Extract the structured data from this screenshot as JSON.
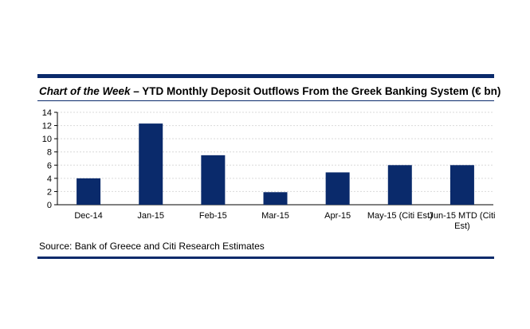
{
  "header": {
    "title_em": "Chart of the Week",
    "title_rest": " – YTD Monthly Deposit Outflows From the Greek Banking System (€ bn)"
  },
  "source": "Source: Bank of Greece and Citi Research Estimates",
  "colors": {
    "bar": "#0a2a6b",
    "rule": "#0a2a6b",
    "grid": "#d9d9d9"
  },
  "chart_data": {
    "type": "bar",
    "title": "Chart of the Week – YTD Monthly Deposit Outflows From the Greek Banking System (€ bn)",
    "categories": [
      "Dec-14",
      "Jan-15",
      "Feb-15",
      "Mar-15",
      "Apr-15",
      "May-15 (Citi Est)",
      "Jun-15 MTD (Citi Est)"
    ],
    "category_lines": [
      [
        "Dec-14"
      ],
      [
        "Jan-15"
      ],
      [
        "Feb-15"
      ],
      [
        "Mar-15"
      ],
      [
        "Apr-15"
      ],
      [
        "May-15 (Citi Est)"
      ],
      [
        "Jun-15 MTD (Citi",
        "Est)"
      ]
    ],
    "values": [
      4.0,
      12.3,
      7.5,
      1.9,
      4.9,
      6.0,
      6.0
    ],
    "xlabel": "",
    "ylabel": "",
    "ylim": [
      0,
      14
    ],
    "yticks": [
      0,
      2,
      4,
      6,
      8,
      10,
      12,
      14
    ],
    "grid": true,
    "legend": "none"
  }
}
